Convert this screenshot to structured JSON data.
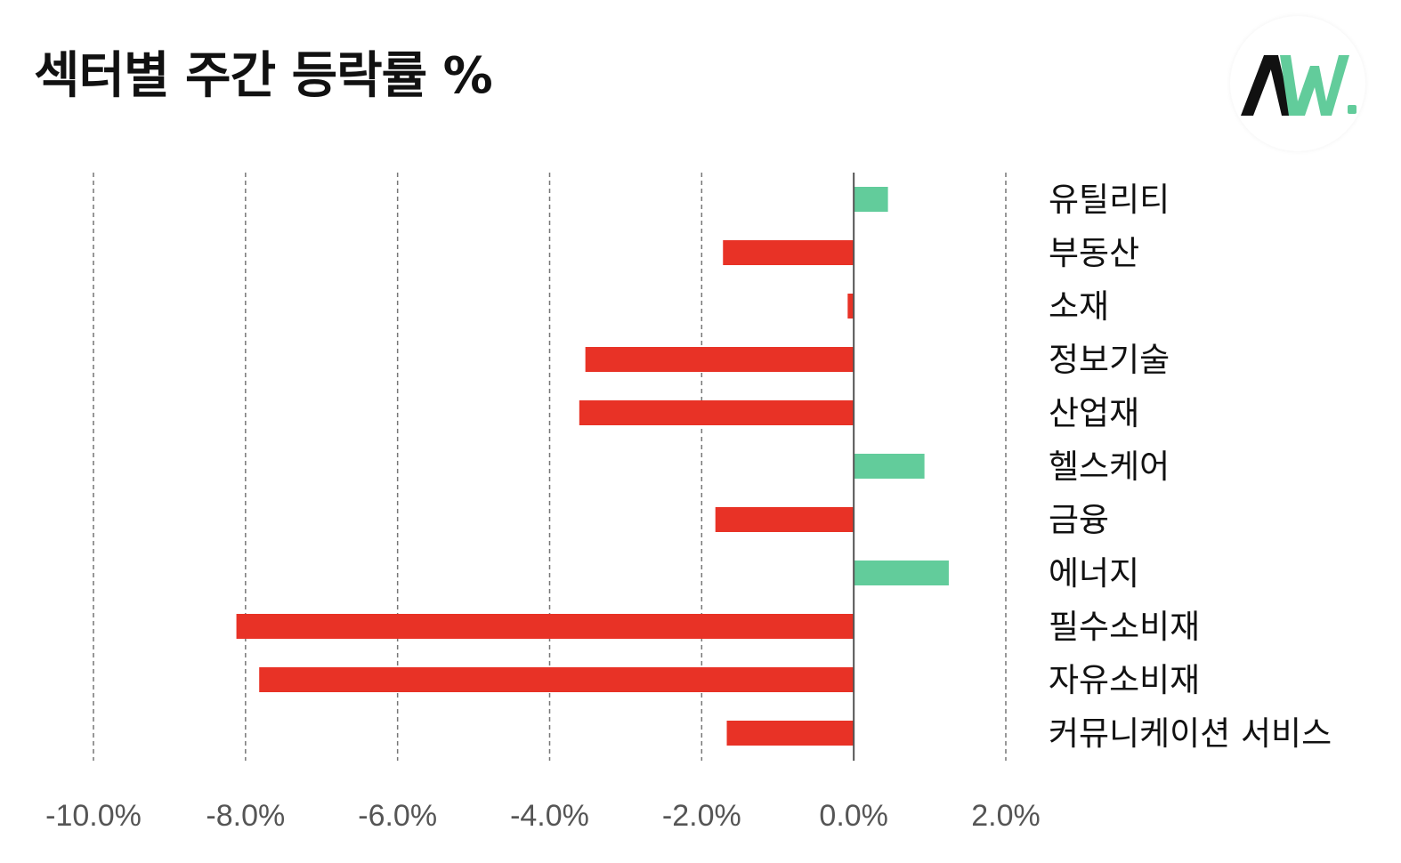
{
  "title": "섹터별 주간 등락률 %",
  "logo": {
    "text": "AW."
  },
  "colors": {
    "positive": "#62CC9B",
    "negative": "#E83226",
    "grid": "#777777",
    "axis": "#555555",
    "logo_dark": "#111111",
    "logo_accent": "#62CC9B"
  },
  "chart_data": {
    "type": "bar",
    "orientation": "horizontal",
    "title": "섹터별 주간 등락률 %",
    "categories": [
      "유틸리티",
      "부동산",
      "소재",
      "정보기술",
      "산업재",
      "헬스케어",
      "금융",
      "에너지",
      "필수소비재",
      "자유소비재",
      "커뮤니케이션 서비스"
    ],
    "values": [
      0.45,
      -1.72,
      -0.08,
      -3.53,
      -3.61,
      0.93,
      -1.82,
      1.25,
      -8.12,
      -7.82,
      -1.67
    ],
    "xlim": [
      -10,
      2
    ],
    "xticks": [
      -10,
      -8,
      -6,
      -4,
      -2,
      0,
      2
    ],
    "xtick_labels": [
      "-10.0%",
      "-8.0%",
      "-6.0%",
      "-4.0%",
      "-2.0%",
      "0.0%",
      "2.0%"
    ],
    "grid": "vertical dashed",
    "legend": "none"
  }
}
